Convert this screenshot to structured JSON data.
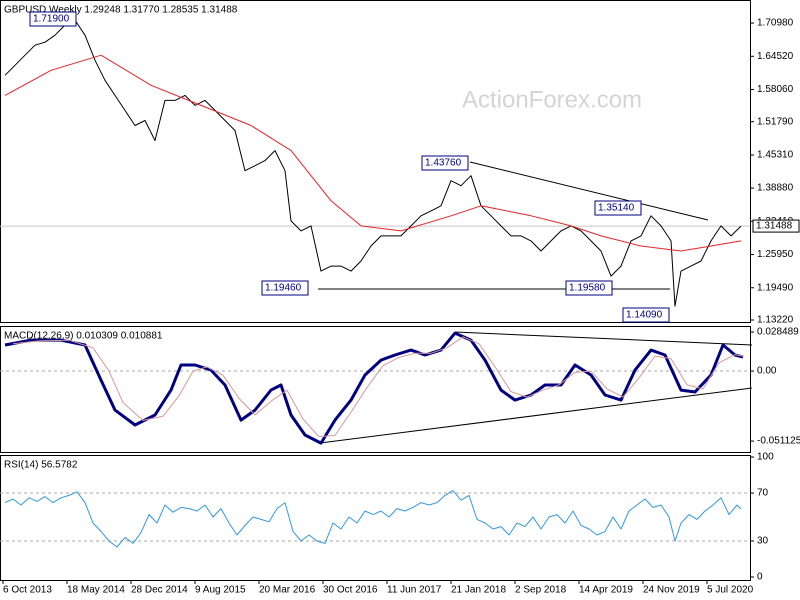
{
  "chart_data": [
    {
      "type": "line",
      "title": "GBPUSD Weekly  1.29248  1.31770  1.28535  1.31488",
      "watermark": "ActionForex.com",
      "xlim": [
        -1.5,
        373.5
      ],
      "ylim": [
        1.1283,
        1.7547
      ],
      "yticks": [
        {
          "value": 1.7098,
          "label": "1.70980"
        },
        {
          "value": 1.6452,
          "label": "1.64520"
        },
        {
          "value": 1.5806,
          "label": "1.58060"
        },
        {
          "value": 1.5179,
          "label": "1.51790"
        },
        {
          "value": 1.4531,
          "label": "1.45310"
        },
        {
          "value": 1.3888,
          "label": "1.38880"
        },
        {
          "value": 1.3241,
          "label": "1.32410"
        },
        {
          "value": 1.2595,
          "label": "1.25950"
        },
        {
          "value": 1.1949,
          "label": "1.19490"
        },
        {
          "value": 1.1322,
          "label": "1.13220"
        }
      ],
      "last_price": 1.31488,
      "annotations": [
        "1.71900",
        "1.43760",
        "1.35140",
        "1.19460",
        "1.19580",
        "1.14090"
      ],
      "series": [
        {
          "color": "#000000",
          "x": [
            1,
            6,
            11,
            16,
            21,
            26,
            31,
            36,
            41,
            46,
            51,
            56,
            61,
            66,
            71,
            76,
            81,
            86,
            91,
            96,
            101,
            106,
            111,
            116,
            121,
            126,
            131,
            136,
            141,
            144,
            149,
            154,
            159,
            164,
            169,
            174,
            179,
            184,
            189,
            194,
            199,
            204,
            209,
            214,
            219,
            224,
            229,
            234,
            239,
            244,
            249,
            254,
            259,
            264,
            269,
            274,
            279,
            284,
            289,
            294,
            299,
            304,
            309,
            314,
            319,
            324,
            329,
            334,
            336,
            339,
            344,
            349,
            354,
            359,
            364,
            369
          ],
          "values": [
            1.6082,
            1.6277,
            1.6473,
            1.6668,
            1.6727,
            1.6863,
            1.7059,
            1.7156,
            1.6863,
            1.6375,
            1.5984,
            1.5691,
            1.5399,
            1.5106,
            1.5203,
            1.4813,
            1.5594,
            1.5594,
            1.5691,
            1.5496,
            1.5594,
            1.5399,
            1.5203,
            1.5008,
            1.4227,
            1.4324,
            1.4422,
            1.4617,
            1.4227,
            1.325,
            1.3055,
            1.3152,
            1.2274,
            1.2371,
            1.2371,
            1.2274,
            1.2469,
            1.2762,
            1.2957,
            1.2957,
            1.2957,
            1.3152,
            1.3348,
            1.3445,
            1.3543,
            1.4031,
            1.3934,
            1.4129,
            1.3543,
            1.3348,
            1.3152,
            1.2957,
            1.2957,
            1.286,
            1.2664,
            1.286,
            1.3055,
            1.3152,
            1.3055,
            1.286,
            1.2664,
            1.2176,
            1.2371,
            1.286,
            1.2957,
            1.3348,
            1.3152,
            1.286,
            1.159,
            1.2274,
            1.2371,
            1.2469,
            1.286,
            1.3152,
            1.2957,
            1.3149
          ]
        },
        {
          "color": "#e8232a",
          "x": [
            1,
            24,
            49,
            74,
            99,
            124,
            144,
            164,
            179,
            199,
            224,
            239,
            264,
            284,
            299,
            319,
            339,
            354,
            369
          ],
          "values": [
            1.5691,
            1.618,
            1.6473,
            1.5887,
            1.5496,
            1.5106,
            1.4617,
            1.3641,
            1.3152,
            1.3055,
            1.3348,
            1.3543,
            1.3348,
            1.3152,
            1.2957,
            1.2762,
            1.2664,
            1.2762,
            1.286
          ]
        }
      ]
    },
    {
      "type": "line",
      "title": "MACD(12,26,9) 0.010309 0.010881",
      "xlim": [
        -1.5,
        373.5
      ],
      "ylim": [
        -0.0591,
        0.0329
      ],
      "yticks": [
        0.028489,
        {
          "value": 0,
          "label": "0.00"
        },
        -0.051125
      ],
      "ref_lines": [
        0
      ],
      "series": [
        {
          "color": "#000080",
          "x": [
            1,
            14,
            29,
            41,
            49,
            56,
            66,
            76,
            84,
            89,
            96,
            104,
            111,
            119,
            126,
            134,
            139,
            144,
            151,
            159,
            166,
            174,
            181,
            189,
            196,
            204,
            211,
            219,
            226,
            234,
            241,
            249,
            256,
            264,
            271,
            279,
            286,
            294,
            301,
            309,
            316,
            324,
            331,
            339,
            346,
            354,
            360,
            366,
            370
          ],
          "values": [
            0.019,
            0.0226,
            0.0226,
            0.019,
            -0.0066,
            -0.0285,
            -0.0394,
            -0.0321,
            -0.0139,
            0.0044,
            0.0044,
            0.0007,
            -0.0102,
            -0.0358,
            -0.0285,
            -0.0139,
            -0.0102,
            -0.0321,
            -0.0467,
            -0.0526,
            -0.0358,
            -0.0212,
            -0.0029,
            0.008,
            0.0117,
            0.0153,
            0.0117,
            0.0153,
            0.0277,
            0.0226,
            0.008,
            -0.0139,
            -0.0212,
            -0.0175,
            -0.0102,
            -0.0102,
            0.0044,
            -0.0029,
            -0.0175,
            -0.0212,
            0.0007,
            0.0153,
            0.0117,
            -0.0139,
            -0.0153,
            -0.0029,
            0.019,
            0.0117,
            0.0103
          ]
        },
        {
          "color": "#d49a9a",
          "x": [
            5,
            18,
            33,
            45,
            53,
            60,
            70,
            80,
            88,
            95,
            102,
            110,
            118,
            126,
            134,
            142,
            150,
            158,
            166,
            174,
            182,
            190,
            198,
            206,
            214,
            222,
            230,
            238,
            246,
            254,
            262,
            270,
            278,
            286,
            294,
            302,
            310,
            318,
            326,
            334,
            342,
            350,
            358,
            366,
            370
          ],
          "values": [
            0.02,
            0.022,
            0.0225,
            0.017,
            0,
            -0.023,
            -0.036,
            -0.033,
            -0.018,
            0,
            0.003,
            -0.003,
            -0.02,
            -0.032,
            -0.022,
            -0.014,
            -0.035,
            -0.048,
            -0.047,
            -0.03,
            -0.012,
            0.004,
            0.01,
            0.013,
            0.013,
            0.017,
            0.025,
            0.02,
            0.003,
            -0.015,
            -0.019,
            -0.014,
            -0.01,
            -0.001,
            0,
            -0.013,
            -0.019,
            -0.005,
            0.011,
            0.009,
            -0.01,
            -0.013,
            0.006,
            0.012,
            0.0109
          ]
        }
      ]
    },
    {
      "type": "line",
      "title": "RSI(14) 56.5782",
      "xlim": [
        -1.5,
        373.5
      ],
      "ylim": [
        -2.5,
        101.7
      ],
      "yticks": [
        100,
        70,
        30,
        0
      ],
      "ref_lines": [
        70,
        30
      ],
      "xticks": [
        {
          "value": 0,
          "label": "6 Oct 2013"
        },
        {
          "value": 32,
          "label": "18 May 2014"
        },
        {
          "value": 64,
          "label": "28 Dec 2014"
        },
        {
          "value": 96,
          "label": "9 Aug 2015"
        },
        {
          "value": 128,
          "label": "20 Mar 2016"
        },
        {
          "value": 160,
          "label": "30 Oct 2016"
        },
        {
          "value": 192,
          "label": "11 Jun 2017"
        },
        {
          "value": 224,
          "label": "21 Jan 2018"
        },
        {
          "value": 256,
          "label": "2 Sep 2018"
        },
        {
          "value": 288,
          "label": "14 Apr 2019"
        },
        {
          "value": 320,
          "label": "24 Nov 2019"
        },
        {
          "value": 352,
          "label": "5 Jul 2020"
        }
      ],
      "series": [
        {
          "color": "#3399dd",
          "x": [
            1,
            5,
            9,
            13,
            17,
            21,
            25,
            29,
            33,
            37,
            41,
            45,
            49,
            53,
            57,
            61,
            65,
            69,
            73,
            77,
            81,
            85,
            89,
            93,
            97,
            101,
            105,
            109,
            113,
            117,
            121,
            125,
            129,
            133,
            137,
            141,
            145,
            149,
            153,
            157,
            161,
            165,
            169,
            173,
            177,
            181,
            185,
            189,
            193,
            197,
            201,
            205,
            209,
            213,
            217,
            221,
            225,
            229,
            233,
            237,
            241,
            245,
            249,
            253,
            257,
            261,
            265,
            269,
            273,
            277,
            281,
            285,
            289,
            293,
            297,
            301,
            305,
            309,
            313,
            317,
            321,
            325,
            329,
            333,
            336,
            339,
            343,
            347,
            351,
            355,
            359,
            363,
            367,
            369
          ],
          "values": [
            62,
            65,
            60,
            66,
            63,
            67,
            62,
            66,
            68,
            71,
            62,
            45,
            38,
            30,
            25,
            33,
            28,
            37,
            52,
            45,
            60,
            54,
            58,
            57,
            55,
            60,
            50,
            57,
            45,
            35,
            43,
            50,
            48,
            46,
            57,
            62,
            38,
            30,
            35,
            30,
            28,
            45,
            40,
            50,
            45,
            55,
            52,
            55,
            50,
            57,
            55,
            58,
            62,
            60,
            62,
            68,
            72,
            64,
            68,
            48,
            45,
            40,
            42,
            35,
            45,
            42,
            50,
            40,
            50,
            52,
            45,
            55,
            43,
            40,
            35,
            38,
            50,
            40,
            55,
            60,
            65,
            58,
            60,
            50,
            30,
            45,
            52,
            48,
            55,
            60,
            66,
            52,
            60,
            56.5782
          ]
        }
      ]
    }
  ]
}
